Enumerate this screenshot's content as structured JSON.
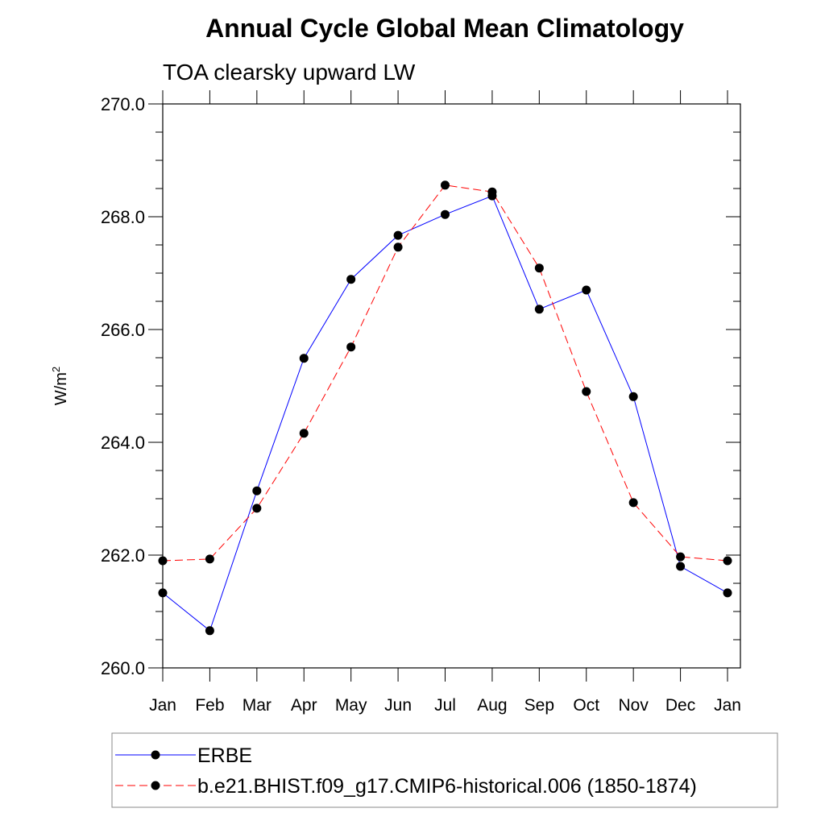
{
  "chart_data": {
    "type": "line",
    "title": "Annual Cycle Global Mean Climatology",
    "subtitle": "TOA clearsky upward LW",
    "xlabel": "",
    "ylabel": "W/m",
    "ylabel_superscript": "2",
    "ylim": [
      260,
      270
    ],
    "yticks": [
      "260.0",
      "262.0",
      "264.0",
      "266.0",
      "268.0",
      "270.0"
    ],
    "categories": [
      "Jan",
      "Feb",
      "Mar",
      "Apr",
      "May",
      "Jun",
      "Jul",
      "Aug",
      "Sep",
      "Oct",
      "Nov",
      "Dec",
      "Jan"
    ],
    "grid": false,
    "legend_placement": "bottom",
    "series": [
      {
        "name": "ERBE",
        "color": "#0000ff",
        "dash": "solid",
        "values": [
          261.33,
          260.66,
          263.14,
          265.49,
          266.89,
          267.67,
          268.04,
          268.37,
          266.36,
          266.7,
          264.81,
          261.8,
          261.33
        ]
      },
      {
        "name": "b.e21.BHIST.f09_g17.CMIP6-historical.006 (1850-1874)",
        "color": "#ff0000",
        "dash": "dashed",
        "values": [
          261.9,
          261.93,
          262.83,
          264.16,
          265.69,
          267.46,
          268.56,
          268.44,
          267.09,
          264.9,
          262.93,
          261.97,
          261.9
        ]
      }
    ]
  }
}
